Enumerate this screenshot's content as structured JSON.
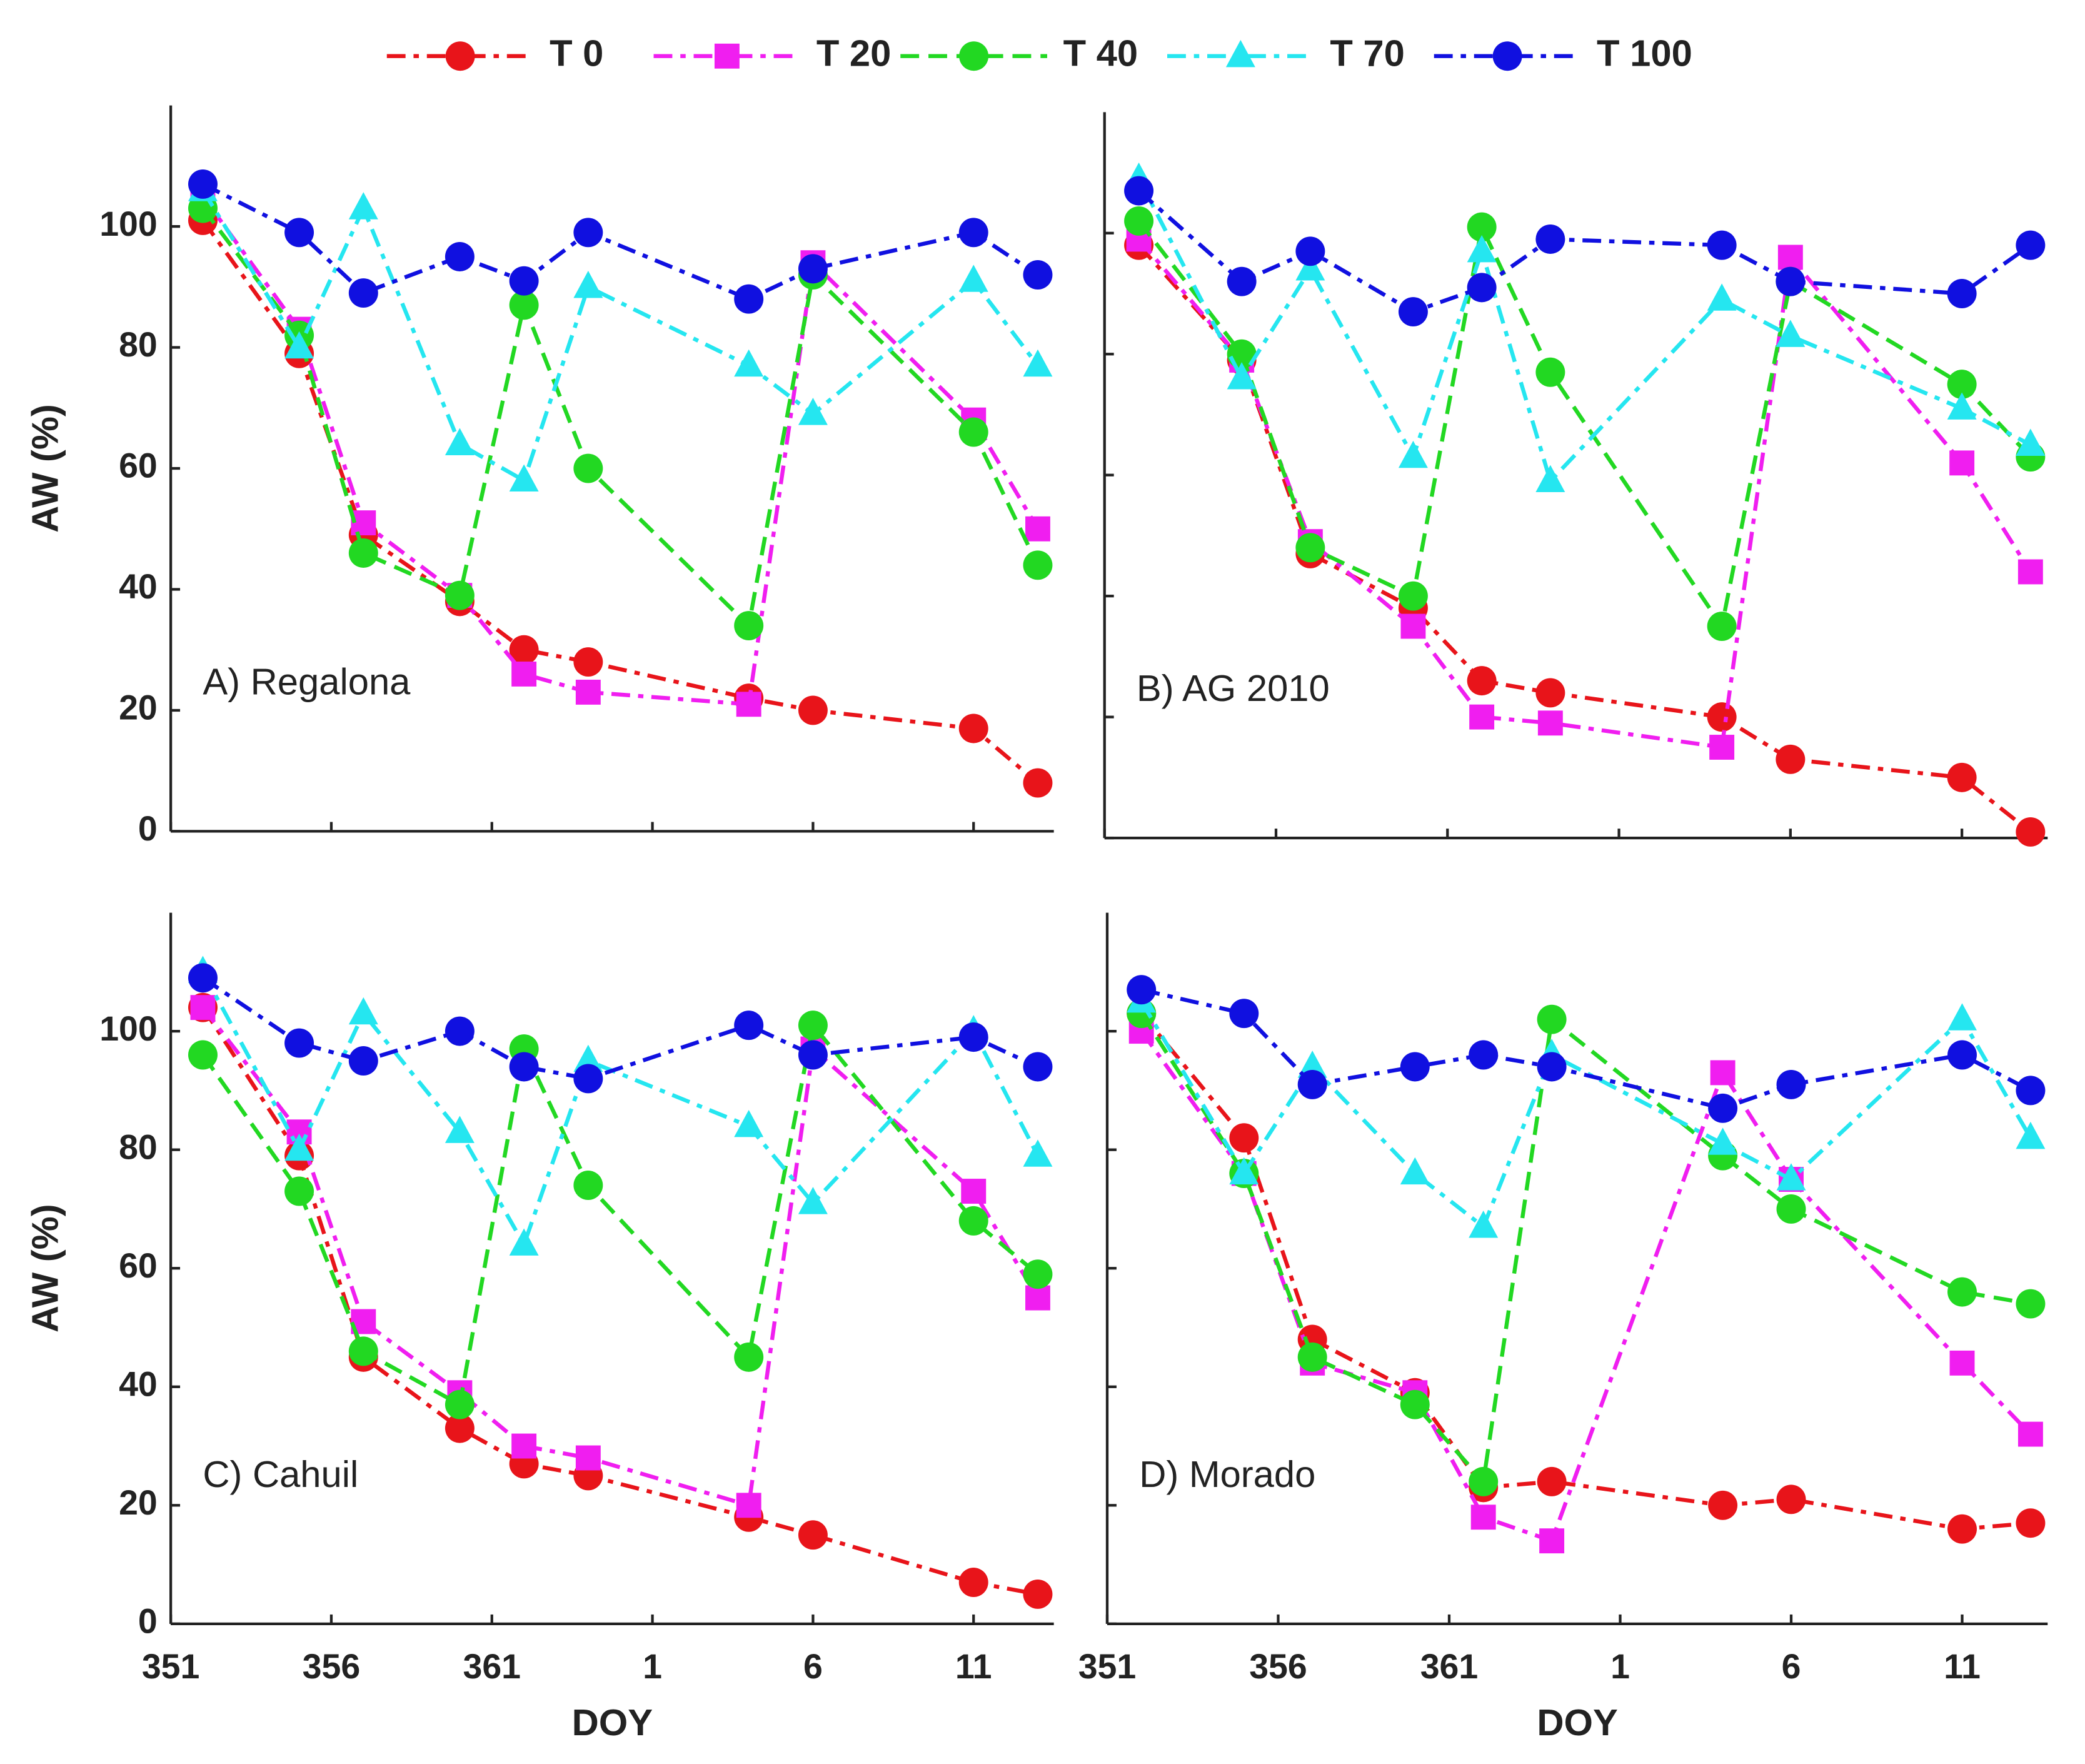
{
  "legend": [
    {
      "name": "T 0",
      "color": "#e8141a",
      "marker": "circle",
      "dash": "dashdot"
    },
    {
      "name": "T 20",
      "color": "#f01ef0",
      "marker": "square",
      "dash": "dashdot"
    },
    {
      "name": "T 40",
      "color": "#22d822",
      "marker": "circle",
      "dash": "dashed"
    },
    {
      "name": "T 70",
      "color": "#25e6f0",
      "marker": "triangle",
      "dash": "dashdot"
    },
    {
      "name": "T 100",
      "color": "#1010e0",
      "marker": "circle",
      "dash": "dashdot"
    }
  ],
  "chart_data": [
    {
      "type": "line",
      "annotation": "A) Regalona",
      "ylabel": "AW (%)",
      "show_xtick_labels": false,
      "show_ytick_labels": true,
      "x": [
        352,
        355,
        357,
        360,
        362,
        364,
        369,
        371,
        376,
        378
      ],
      "xlim": [
        351,
        378.5
      ],
      "xticks": [
        351,
        356,
        361,
        {
          "value": 366,
          "label": "1"
        },
        {
          "value": 371,
          "label": "6"
        },
        {
          "value": 376,
          "label": "11"
        }
      ],
      "ylim": [
        0,
        120
      ],
      "yticks": [
        0,
        20,
        40,
        60,
        80,
        100
      ],
      "series": [
        {
          "values": [
            101,
            79,
            49,
            38,
            30,
            28,
            22,
            20,
            17,
            8
          ]
        },
        {
          "values": [
            105,
            83,
            51,
            39,
            26,
            23,
            21,
            94,
            68,
            50
          ]
        },
        {
          "values": [
            103,
            82,
            46,
            39,
            87,
            60,
            34,
            92,
            66,
            44
          ]
        },
        {
          "values": [
            106,
            80,
            103,
            64,
            58,
            90,
            77,
            69,
            91,
            77
          ]
        },
        {
          "values": [
            107,
            99,
            89,
            95,
            91,
            99,
            88,
            93,
            99,
            92
          ]
        }
      ]
    },
    {
      "type": "line",
      "annotation": "B) AG 2010",
      "show_xtick_labels": false,
      "show_ytick_labels": false,
      "x": [
        352,
        355,
        357,
        360,
        362,
        364,
        369,
        371,
        376,
        378
      ],
      "xlim": [
        351,
        378.5
      ],
      "xticks": [
        351,
        356,
        361,
        {
          "value": 366,
          "label": "1"
        },
        {
          "value": 371,
          "label": "6"
        },
        {
          "value": 376,
          "label": "11"
        }
      ],
      "ylim": [
        0,
        120
      ],
      "yticks": [
        0,
        20,
        40,
        60,
        80,
        100
      ],
      "series": [
        {
          "values": [
            98,
            79,
            47,
            38,
            26,
            24,
            20,
            13,
            10,
            1
          ]
        },
        {
          "values": [
            99,
            79,
            49,
            35,
            20,
            19,
            15,
            96,
            62,
            44
          ]
        },
        {
          "values": [
            102,
            80,
            48,
            40,
            101,
            77,
            35,
            92,
            75,
            63
          ]
        },
        {
          "values": [
            109,
            76,
            94,
            63,
            97,
            59,
            89,
            83,
            71,
            65
          ]
        },
        {
          "values": [
            107,
            92,
            97,
            87,
            91,
            99,
            98,
            92,
            90,
            98
          ]
        }
      ]
    },
    {
      "type": "line",
      "annotation": "C) Cahuil",
      "ylabel": "AW (%)",
      "xlabel": "DOY",
      "show_xtick_labels": true,
      "show_ytick_labels": true,
      "x": [
        352,
        355,
        357,
        360,
        362,
        364,
        369,
        371,
        376,
        378
      ],
      "xlim": [
        351,
        378.5
      ],
      "xticks": [
        351,
        356,
        361,
        {
          "value": 366,
          "label": "1"
        },
        {
          "value": 371,
          "label": "6"
        },
        {
          "value": 376,
          "label": "11"
        }
      ],
      "ylim": [
        0,
        120
      ],
      "yticks": [
        0,
        20,
        40,
        60,
        80,
        100
      ],
      "series": [
        {
          "values": [
            104,
            79,
            45,
            33,
            27,
            25,
            18,
            15,
            7,
            5
          ]
        },
        {
          "values": [
            104,
            83,
            51,
            39,
            30,
            28,
            20,
            97,
            73,
            55
          ]
        },
        {
          "values": [
            96,
            73,
            46,
            37,
            97,
            74,
            45,
            101,
            68,
            59
          ]
        },
        {
          "values": [
            110,
            80,
            103,
            83,
            64,
            95,
            84,
            71,
            100,
            79
          ]
        },
        {
          "values": [
            109,
            98,
            95,
            100,
            94,
            92,
            101,
            96,
            99,
            94
          ]
        }
      ]
    },
    {
      "type": "line",
      "annotation": "D) Morado",
      "xlabel": "DOY",
      "show_xtick_labels": true,
      "show_ytick_labels": false,
      "x": [
        352,
        355,
        357,
        360,
        362,
        364,
        369,
        371,
        376,
        378
      ],
      "xlim": [
        351,
        378.5
      ],
      "xticks": [
        351,
        356,
        361,
        {
          "value": 366,
          "label": "1"
        },
        {
          "value": 371,
          "label": "6"
        },
        {
          "value": 376,
          "label": "11"
        }
      ],
      "ylim": [
        0,
        120
      ],
      "yticks": [
        0,
        20,
        40,
        60,
        80,
        100
      ],
      "series": [
        {
          "values": [
            103,
            82,
            48,
            39,
            23,
            24,
            20,
            21,
            16,
            17
          ]
        },
        {
          "values": [
            100,
            76,
            44,
            39,
            18,
            14,
            93,
            75,
            44,
            32
          ]
        },
        {
          "values": [
            103,
            76,
            45,
            37,
            24,
            102,
            79,
            70,
            56,
            54
          ]
        },
        {
          "values": [
            105,
            76,
            94,
            76,
            67,
            96,
            81,
            75,
            102,
            82
          ]
        },
        {
          "values": [
            107,
            103,
            91,
            94,
            96,
            94,
            87,
            91,
            96,
            90
          ]
        }
      ]
    }
  ]
}
